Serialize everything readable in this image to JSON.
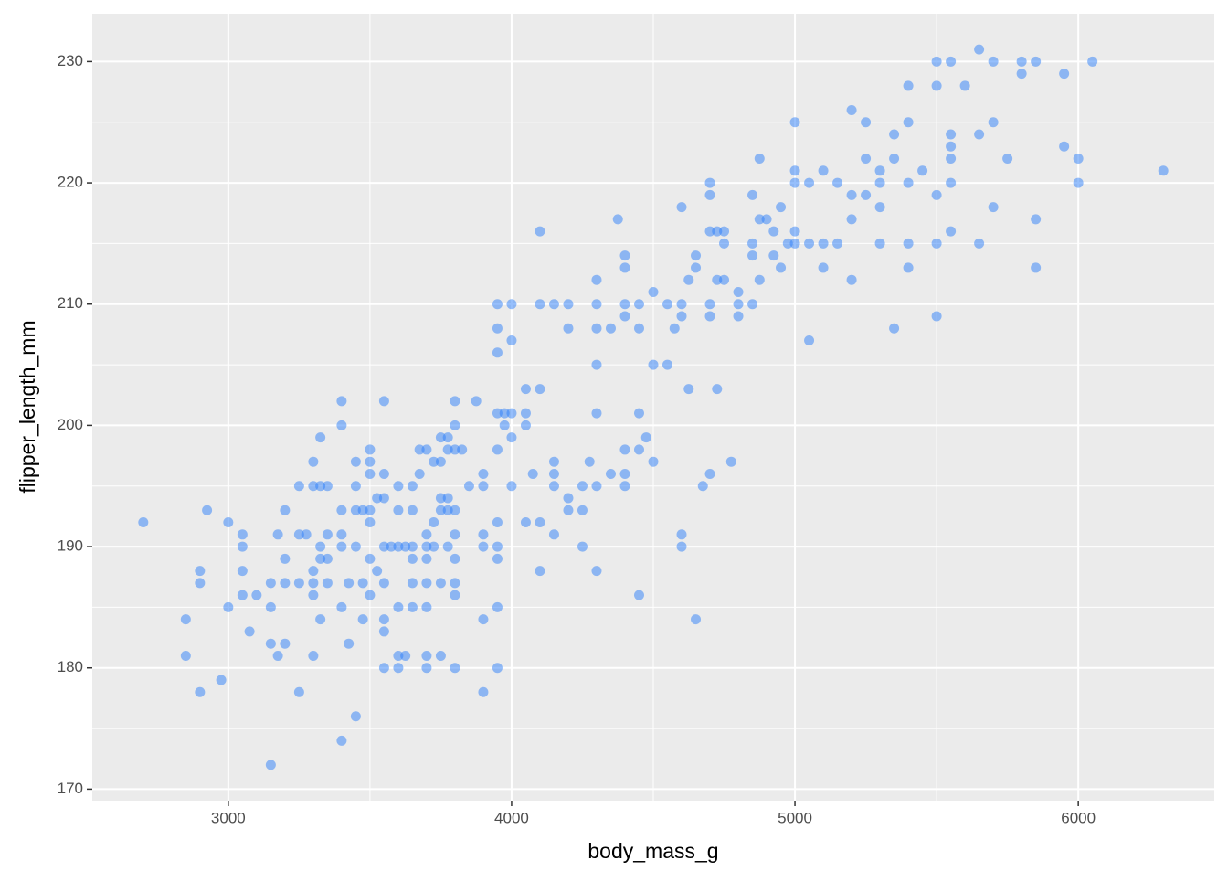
{
  "chart_data": {
    "type": "scatter",
    "x_label": "body_mass_g",
    "y_label": "flipper_length_mm",
    "xlim": [
      2520,
      6480
    ],
    "ylim": [
      169.05,
      233.95
    ],
    "xticks": [
      3000,
      4000,
      5000,
      6000
    ],
    "yticks": [
      170,
      180,
      190,
      200,
      210,
      220,
      230
    ],
    "x_minor_ticks": [
      3500,
      4500,
      5500
    ],
    "y_minor_ticks": [
      175,
      185,
      195,
      205,
      215,
      225
    ],
    "grid": true,
    "color": "#2d7ff9",
    "opacity": 0.5,
    "x": [
      2700,
      2850,
      2850,
      2900,
      2900,
      2900,
      2925,
      2975,
      3000,
      3000,
      3050,
      3050,
      3050,
      3050,
      3075,
      3100,
      3150,
      3150,
      3150,
      3150,
      3175,
      3175,
      3200,
      3200,
      3200,
      3200,
      3250,
      3250,
      3250,
      3250,
      3275,
      3300,
      3300,
      3300,
      3300,
      3300,
      3300,
      3325,
      3325,
      3325,
      3325,
      3325,
      3350,
      3350,
      3350,
      3350,
      3400,
      3400,
      3400,
      3400,
      3400,
      3400,
      3400,
      3425,
      3425,
      3450,
      3450,
      3450,
      3450,
      3450,
      3475,
      3475,
      3475,
      3500,
      3500,
      3500,
      3500,
      3500,
      3500,
      3500,
      3525,
      3525,
      3550,
      3550,
      3550,
      3550,
      3550,
      3550,
      3550,
      3550,
      3575,
      3600,
      3600,
      3600,
      3600,
      3600,
      3600,
      3625,
      3625,
      3650,
      3650,
      3650,
      3650,
      3650,
      3650,
      3675,
      3675,
      3700,
      3700,
      3700,
      3700,
      3700,
      3700,
      3700,
      3700,
      3725,
      3725,
      3725,
      3750,
      3750,
      3750,
      3750,
      3750,
      3750,
      3775,
      3775,
      3775,
      3775,
      3775,
      3800,
      3800,
      3800,
      3800,
      3800,
      3800,
      3800,
      3800,
      3800,
      3825,
      3850,
      3875,
      3900,
      3900,
      3900,
      3900,
      3900,
      3900,
      3950,
      3950,
      3950,
      3950,
      3950,
      3950,
      3950,
      3950,
      3950,
      3950,
      3975,
      3975,
      4000,
      4000,
      4000,
      4000,
      4000,
      4050,
      4050,
      4050,
      4050,
      4075,
      4100,
      4100,
      4100,
      4100,
      4100,
      4150,
      4150,
      4150,
      4150,
      4150,
      4200,
      4200,
      4200,
      4200,
      4250,
      4250,
      4250,
      4275,
      4300,
      4300,
      4300,
      4300,
      4300,
      4300,
      4300,
      4350,
      4350,
      4375,
      4400,
      4400,
      4400,
      4400,
      4400,
      4400,
      4400,
      4450,
      4450,
      4450,
      4450,
      4450,
      4475,
      4500,
      4500,
      4500,
      4550,
      4550,
      4575,
      4600,
      4600,
      4600,
      4600,
      4600,
      4625,
      4625,
      4650,
      4650,
      4650,
      4675,
      4700,
      4700,
      4700,
      4700,
      4700,
      4700,
      4725,
      4725,
      4725,
      4750,
      4750,
      4750,
      4775,
      4800,
      4800,
      4800,
      4850,
      4850,
      4850,
      4850,
      4875,
      4875,
      4875,
      4900,
      4925,
      4925,
      4950,
      4950,
      4975,
      5000,
      5000,
      5000,
      5000,
      5000,
      5050,
      5050,
      5050,
      5100,
      5100,
      5100,
      5150,
      5150,
      5200,
      5200,
      5200,
      5200,
      5250,
      5250,
      5250,
      5300,
      5300,
      5300,
      5300,
      5350,
      5350,
      5350,
      5400,
      5400,
      5400,
      5400,
      5400,
      5450,
      5500,
      5500,
      5500,
      5500,
      5500,
      5550,
      5550,
      5550,
      5550,
      5550,
      5550,
      5600,
      5650,
      5650,
      5650,
      5700,
      5700,
      5700,
      5750,
      5800,
      5800,
      5850,
      5850,
      5850,
      5950,
      5950,
      6000,
      6000,
      6050,
      6300
    ],
    "values": [
      192,
      184,
      181,
      188,
      187,
      178,
      193,
      179,
      192,
      185,
      191,
      190,
      188,
      186,
      183,
      186,
      187,
      185,
      182,
      172,
      191,
      181,
      193,
      189,
      187,
      182,
      195,
      191,
      187,
      178,
      191,
      197,
      195,
      188,
      187,
      186,
      181,
      199,
      195,
      190,
      189,
      184,
      195,
      191,
      189,
      187,
      202,
      200,
      193,
      191,
      190,
      185,
      174,
      187,
      182,
      197,
      195,
      193,
      190,
      176,
      193,
      187,
      184,
      198,
      197,
      196,
      193,
      192,
      189,
      186,
      194,
      188,
      202,
      196,
      194,
      190,
      187,
      184,
      183,
      180,
      190,
      195,
      193,
      190,
      185,
      181,
      180,
      190,
      181,
      195,
      193,
      190,
      189,
      187,
      185,
      198,
      196,
      198,
      191,
      190,
      189,
      187,
      185,
      181,
      180,
      197,
      192,
      190,
      199,
      197,
      194,
      193,
      187,
      181,
      199,
      198,
      194,
      193,
      190,
      202,
      200,
      198,
      193,
      191,
      189,
      187,
      186,
      180,
      198,
      195,
      202,
      196,
      195,
      191,
      190,
      184,
      178,
      210,
      208,
      206,
      201,
      198,
      192,
      190,
      189,
      185,
      180,
      201,
      200,
      210,
      207,
      201,
      199,
      195,
      203,
      201,
      200,
      192,
      196,
      216,
      210,
      203,
      192,
      188,
      210,
      197,
      196,
      195,
      191,
      210,
      208,
      194,
      193,
      195,
      193,
      190,
      197,
      212,
      210,
      208,
      205,
      201,
      195,
      188,
      208,
      196,
      217,
      214,
      213,
      210,
      209,
      198,
      196,
      195,
      210,
      208,
      201,
      198,
      186,
      199,
      211,
      205,
      197,
      210,
      205,
      208,
      218,
      210,
      209,
      191,
      190,
      212,
      203,
      214,
      213,
      184,
      195,
      220,
      219,
      216,
      210,
      209,
      196,
      216,
      212,
      203,
      216,
      215,
      212,
      197,
      211,
      210,
      209,
      219,
      215,
      214,
      210,
      222,
      217,
      212,
      217,
      216,
      214,
      218,
      213,
      215,
      225,
      221,
      220,
      216,
      215,
      220,
      215,
      207,
      221,
      215,
      213,
      220,
      215,
      226,
      219,
      217,
      212,
      225,
      222,
      219,
      221,
      220,
      218,
      215,
      224,
      222,
      208,
      228,
      225,
      220,
      215,
      213,
      221,
      230,
      228,
      219,
      215,
      209,
      230,
      224,
      223,
      222,
      220,
      216,
      228,
      231,
      224,
      215,
      230,
      225,
      218,
      222,
      230,
      229,
      230,
      217,
      213,
      229,
      223,
      222,
      220,
      230,
      221
    ]
  }
}
